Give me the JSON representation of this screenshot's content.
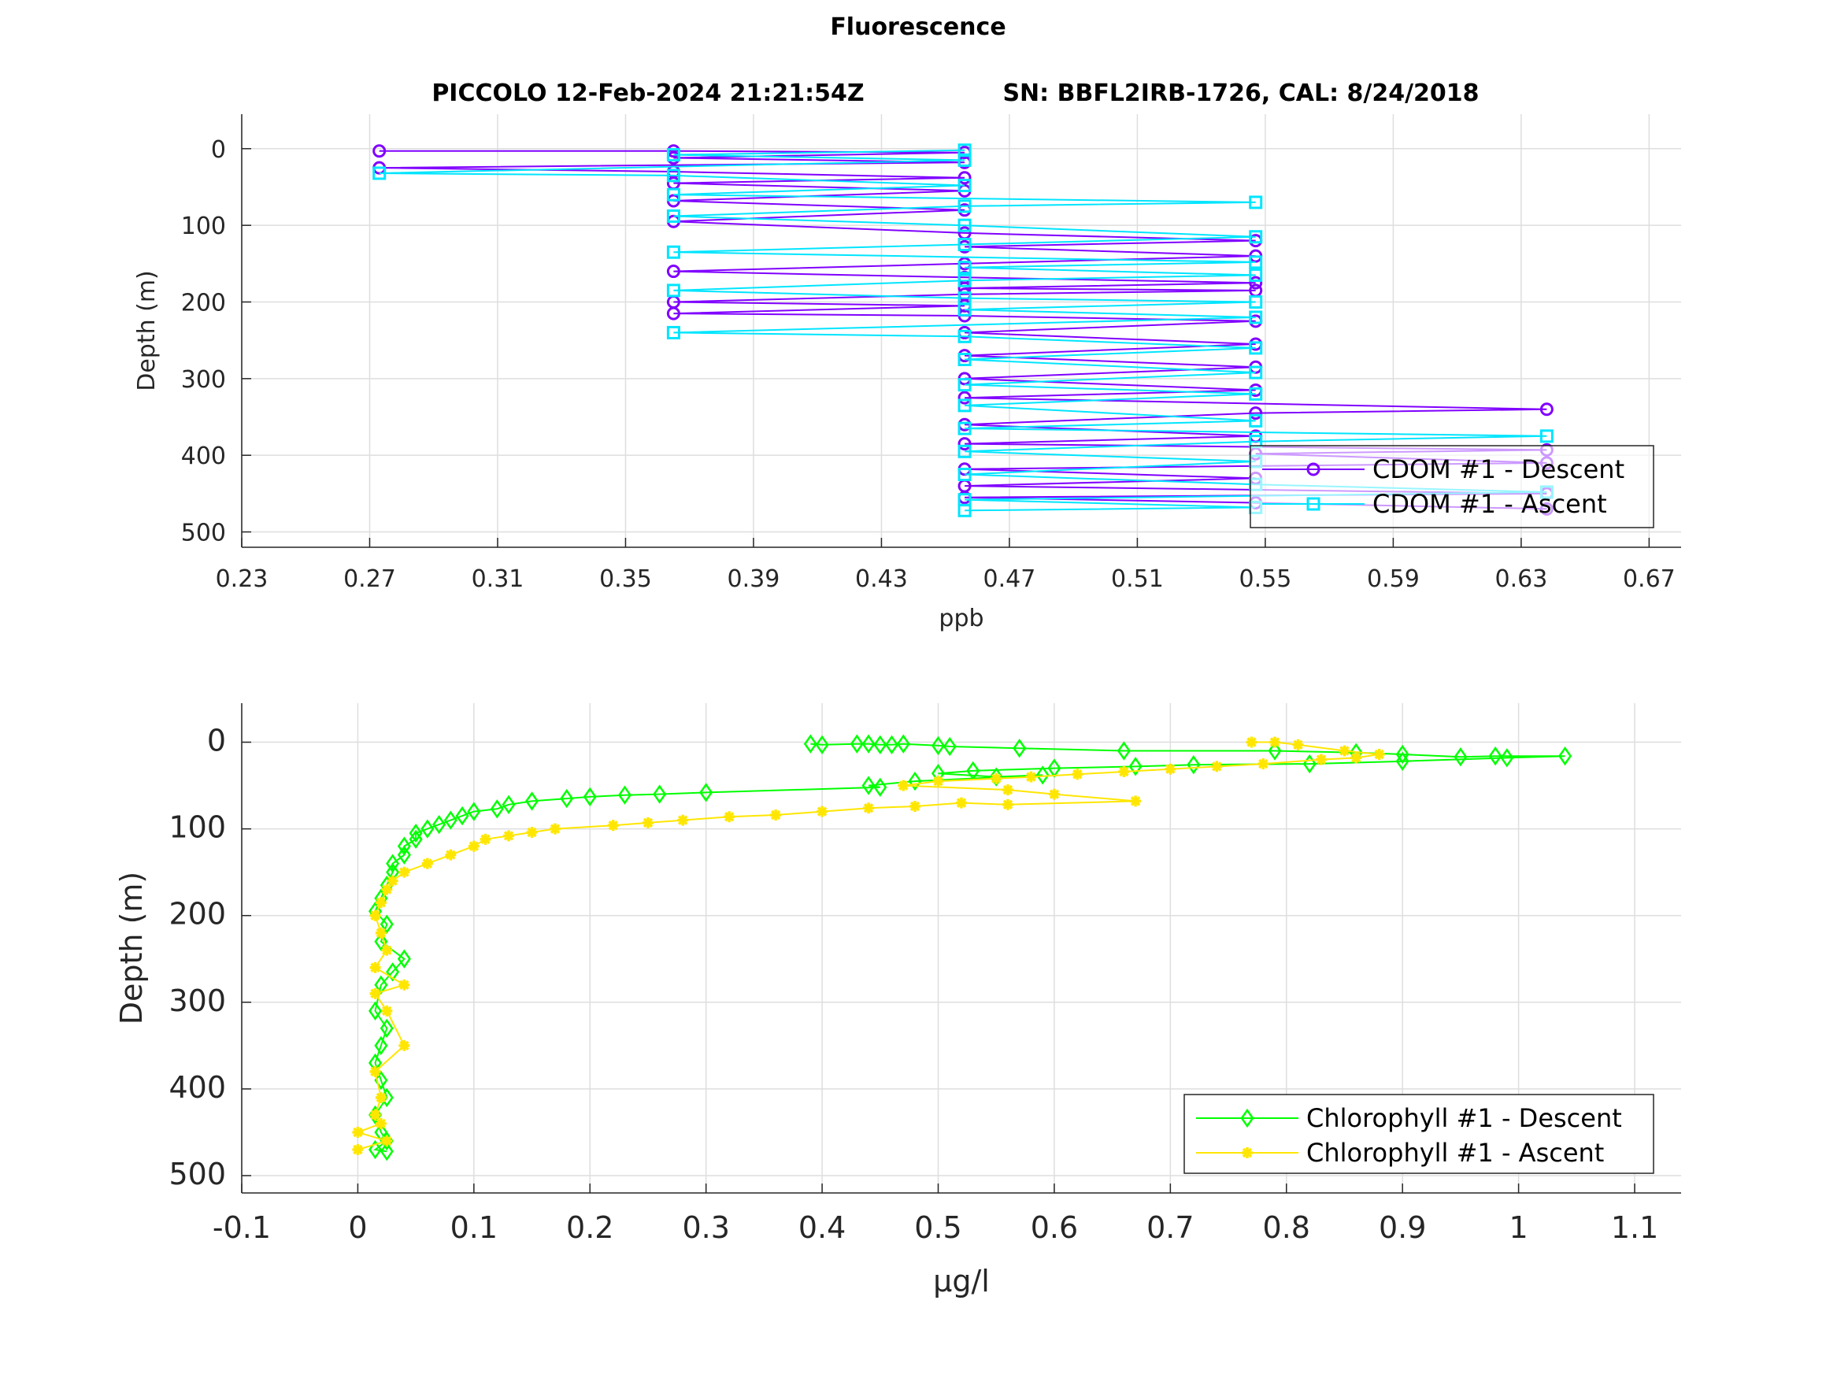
{
  "figure": {
    "title": "Fluorescence",
    "subtitle_left": "PICCOLO 12-Feb-2024 21:21:54Z",
    "subtitle_right": "SN: BBFL2IRB-1726, CAL: 8/24/2018"
  },
  "chart_data": [
    {
      "type": "line",
      "xlabel": "ppb",
      "ylabel": "Depth (m)",
      "xlim": [
        0.23,
        0.68
      ],
      "ylim": [
        520,
        -45
      ],
      "y_reversed": true,
      "xticks": [
        "0.23",
        "0.27",
        "0.31",
        "0.35",
        "0.39",
        "0.43",
        "0.47",
        "0.51",
        "0.55",
        "0.59",
        "0.63",
        "0.67"
      ],
      "yticks": [
        "0",
        "100",
        "200",
        "300",
        "400",
        "500"
      ],
      "grid": true,
      "legend_position": "bottom-right",
      "legend": [
        "CDOM #1 - Descent",
        "CDOM #1 - Ascent"
      ],
      "colors": {
        "descent": "#8000ff",
        "ascent": "#00e5ff"
      },
      "series": [
        {
          "name": "CDOM #1 - Descent",
          "marker": "circle",
          "points": [
            [
              0.273,
              3
            ],
            [
              0.365,
              3
            ],
            [
              0.456,
              5
            ],
            [
              0.365,
              12
            ],
            [
              0.456,
              18
            ],
            [
              0.273,
              25
            ],
            [
              0.365,
              30
            ],
            [
              0.456,
              38
            ],
            [
              0.365,
              45
            ],
            [
              0.456,
              55
            ],
            [
              0.365,
              68
            ],
            [
              0.456,
              80
            ],
            [
              0.365,
              95
            ],
            [
              0.456,
              110
            ],
            [
              0.547,
              120
            ],
            [
              0.456,
              128
            ],
            [
              0.547,
              140
            ],
            [
              0.456,
              150
            ],
            [
              0.365,
              160
            ],
            [
              0.456,
              168
            ],
            [
              0.547,
              175
            ],
            [
              0.456,
              182
            ],
            [
              0.547,
              185
            ],
            [
              0.456,
              190
            ],
            [
              0.365,
              200
            ],
            [
              0.456,
              205
            ],
            [
              0.365,
              215
            ],
            [
              0.456,
              218
            ],
            [
              0.547,
              225
            ],
            [
              0.456,
              240
            ],
            [
              0.547,
              255
            ],
            [
              0.456,
              270
            ],
            [
              0.547,
              285
            ],
            [
              0.456,
              300
            ],
            [
              0.547,
              315
            ],
            [
              0.456,
              325
            ],
            [
              0.638,
              340
            ],
            [
              0.547,
              345
            ],
            [
              0.456,
              360
            ],
            [
              0.547,
              375
            ],
            [
              0.456,
              385
            ],
            [
              0.638,
              393
            ],
            [
              0.547,
              398
            ],
            [
              0.638,
              410
            ],
            [
              0.456,
              418
            ],
            [
              0.547,
              430
            ],
            [
              0.456,
              440
            ],
            [
              0.638,
              450
            ],
            [
              0.456,
              455
            ],
            [
              0.547,
              462
            ],
            [
              0.638,
              470
            ]
          ]
        },
        {
          "name": "CDOM #1 - Ascent",
          "marker": "square",
          "points": [
            [
              0.456,
              2
            ],
            [
              0.365,
              8
            ],
            [
              0.456,
              15
            ],
            [
              0.273,
              32
            ],
            [
              0.365,
              35
            ],
            [
              0.456,
              48
            ],
            [
              0.365,
              60
            ],
            [
              0.547,
              70
            ],
            [
              0.456,
              75
            ],
            [
              0.365,
              88
            ],
            [
              0.456,
              100
            ],
            [
              0.547,
              115
            ],
            [
              0.456,
              125
            ],
            [
              0.365,
              135
            ],
            [
              0.547,
              148
            ],
            [
              0.456,
              155
            ],
            [
              0.547,
              165
            ],
            [
              0.456,
              172
            ],
            [
              0.365,
              185
            ],
            [
              0.456,
              195
            ],
            [
              0.547,
              200
            ],
            [
              0.456,
              210
            ],
            [
              0.547,
              220
            ],
            [
              0.365,
              240
            ],
            [
              0.456,
              245
            ],
            [
              0.547,
              260
            ],
            [
              0.456,
              275
            ],
            [
              0.547,
              292
            ],
            [
              0.456,
              308
            ],
            [
              0.547,
              320
            ],
            [
              0.456,
              335
            ],
            [
              0.547,
              355
            ],
            [
              0.456,
              365
            ],
            [
              0.638,
              375
            ],
            [
              0.547,
              382
            ],
            [
              0.456,
              395
            ],
            [
              0.547,
              408
            ],
            [
              0.456,
              425
            ],
            [
              0.547,
              438
            ],
            [
              0.638,
              448
            ],
            [
              0.456,
              458
            ],
            [
              0.547,
              468
            ],
            [
              0.456,
              472
            ]
          ]
        }
      ]
    },
    {
      "type": "line",
      "xlabel": "μg/l",
      "ylabel": "Depth (m)",
      "xlim": [
        -0.1,
        1.14
      ],
      "ylim": [
        520,
        -45
      ],
      "y_reversed": true,
      "xticks": [
        "-0.1",
        "0",
        "0.1",
        "0.2",
        "0.3",
        "0.4",
        "0.5",
        "0.6",
        "0.7",
        "0.8",
        "0.9",
        "1",
        "1.1"
      ],
      "yticks": [
        "0",
        "100",
        "200",
        "300",
        "400",
        "500"
      ],
      "grid": true,
      "legend_position": "bottom-right",
      "legend": [
        "Chlorophyll #1 - Descent",
        "Chlorophyll #1 - Ascent"
      ],
      "colors": {
        "descent": "#00ff00",
        "ascent": "#ffe600"
      },
      "series": [
        {
          "name": "Chlorophyll #1 - Descent",
          "marker": "diamond",
          "points": [
            [
              0.39,
              2
            ],
            [
              0.4,
              3
            ],
            [
              0.43,
              2
            ],
            [
              0.44,
              2
            ],
            [
              0.45,
              3
            ],
            [
              0.46,
              3
            ],
            [
              0.47,
              2
            ],
            [
              0.5,
              4
            ],
            [
              0.51,
              5
            ],
            [
              0.57,
              7
            ],
            [
              0.66,
              10
            ],
            [
              0.79,
              10
            ],
            [
              0.86,
              12
            ],
            [
              0.9,
              14
            ],
            [
              0.95,
              17
            ],
            [
              0.98,
              16
            ],
            [
              1.04,
              16
            ],
            [
              0.99,
              18
            ],
            [
              0.9,
              22
            ],
            [
              0.82,
              25
            ],
            [
              0.72,
              26
            ],
            [
              0.67,
              28
            ],
            [
              0.6,
              30
            ],
            [
              0.53,
              33
            ],
            [
              0.5,
              36
            ],
            [
              0.55,
              40
            ],
            [
              0.59,
              38
            ],
            [
              0.48,
              45
            ],
            [
              0.44,
              50
            ],
            [
              0.45,
              52
            ],
            [
              0.3,
              58
            ],
            [
              0.26,
              60
            ],
            [
              0.23,
              61
            ],
            [
              0.2,
              63
            ],
            [
              0.18,
              65
            ],
            [
              0.15,
              68
            ],
            [
              0.13,
              72
            ],
            [
              0.12,
              77
            ],
            [
              0.1,
              80
            ],
            [
              0.09,
              85
            ],
            [
              0.08,
              90
            ],
            [
              0.07,
              95
            ],
            [
              0.06,
              100
            ],
            [
              0.05,
              105
            ],
            [
              0.05,
              112
            ],
            [
              0.04,
              120
            ],
            [
              0.04,
              130
            ],
            [
              0.03,
              140
            ],
            [
              0.03,
              150
            ],
            [
              0.025,
              165
            ],
            [
              0.02,
              180
            ],
            [
              0.015,
              195
            ],
            [
              0.025,
              210
            ],
            [
              0.02,
              230
            ],
            [
              0.04,
              250
            ],
            [
              0.03,
              265
            ],
            [
              0.02,
              280
            ],
            [
              0.015,
              310
            ],
            [
              0.025,
              330
            ],
            [
              0.02,
              350
            ],
            [
              0.015,
              370
            ],
            [
              0.02,
              390
            ],
            [
              0.025,
              410
            ],
            [
              0.015,
              430
            ],
            [
              0.02,
              450
            ],
            [
              0.025,
              460
            ],
            [
              0.015,
              470
            ],
            [
              0.025,
              472
            ]
          ]
        },
        {
          "name": "Chlorophyll #1 - Ascent",
          "marker": "asterisk",
          "points": [
            [
              0.77,
              0
            ],
            [
              0.79,
              0
            ],
            [
              0.81,
              3
            ],
            [
              0.85,
              10
            ],
            [
              0.88,
              14
            ],
            [
              0.86,
              18
            ],
            [
              0.83,
              20
            ],
            [
              0.78,
              25
            ],
            [
              0.74,
              28
            ],
            [
              0.7,
              31
            ],
            [
              0.66,
              34
            ],
            [
              0.62,
              37
            ],
            [
              0.58,
              40
            ],
            [
              0.55,
              42
            ],
            [
              0.5,
              45
            ],
            [
              0.47,
              50
            ],
            [
              0.56,
              55
            ],
            [
              0.6,
              60
            ],
            [
              0.67,
              68
            ],
            [
              0.56,
              72
            ],
            [
              0.52,
              70
            ],
            [
              0.48,
              74
            ],
            [
              0.44,
              76
            ],
            [
              0.4,
              80
            ],
            [
              0.36,
              84
            ],
            [
              0.32,
              86
            ],
            [
              0.28,
              90
            ],
            [
              0.25,
              93
            ],
            [
              0.22,
              96
            ],
            [
              0.17,
              100
            ],
            [
              0.15,
              104
            ],
            [
              0.13,
              108
            ],
            [
              0.11,
              112
            ],
            [
              0.1,
              120
            ],
            [
              0.08,
              130
            ],
            [
              0.06,
              140
            ],
            [
              0.04,
              150
            ],
            [
              0.03,
              160
            ],
            [
              0.025,
              170
            ],
            [
              0.02,
              185
            ],
            [
              0.015,
              200
            ],
            [
              0.02,
              220
            ],
            [
              0.025,
              240
            ],
            [
              0.015,
              260
            ],
            [
              0.04,
              280
            ],
            [
              0.015,
              290
            ],
            [
              0.025,
              310
            ],
            [
              0.04,
              350
            ],
            [
              0.015,
              380
            ],
            [
              0.02,
              410
            ],
            [
              0.015,
              430
            ],
            [
              0.02,
              440
            ],
            [
              0.0,
              450
            ],
            [
              0.025,
              460
            ],
            [
              0.0,
              470
            ]
          ]
        }
      ]
    }
  ]
}
